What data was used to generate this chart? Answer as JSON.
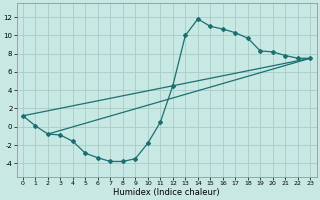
{
  "xlabel": "Humidex (Indice chaleur)",
  "xlim": [
    -0.5,
    23.5
  ],
  "ylim": [
    -5.5,
    13.5
  ],
  "xticks": [
    0,
    1,
    2,
    3,
    4,
    5,
    6,
    7,
    8,
    9,
    10,
    11,
    12,
    13,
    14,
    15,
    16,
    17,
    18,
    19,
    20,
    21,
    22,
    23
  ],
  "yticks": [
    -4,
    -2,
    0,
    2,
    4,
    6,
    8,
    10,
    12
  ],
  "background_color": "#c8e8e4",
  "grid_color": "#a8ccc8",
  "line_color": "#1a7070",
  "line1_x": [
    0,
    1,
    2,
    3,
    4,
    5,
    6,
    7,
    8,
    9,
    10,
    11,
    12,
    13,
    14,
    15,
    16,
    17,
    18,
    19,
    20,
    21,
    22,
    23
  ],
  "line1_y": [
    1.2,
    0.1,
    -0.8,
    -0.9,
    -1.6,
    -2.9,
    -3.4,
    -3.8,
    -3.8,
    -3.5,
    -1.8,
    0.5,
    4.5,
    10.0,
    11.8,
    11.0,
    10.7,
    10.3,
    9.7,
    8.3,
    8.2,
    7.8,
    7.5,
    7.5
  ],
  "line2_x": [
    0,
    23
  ],
  "line2_y": [
    1.2,
    7.5
  ],
  "line3_x": [
    2,
    23
  ],
  "line3_y": [
    -0.8,
    7.5
  ]
}
